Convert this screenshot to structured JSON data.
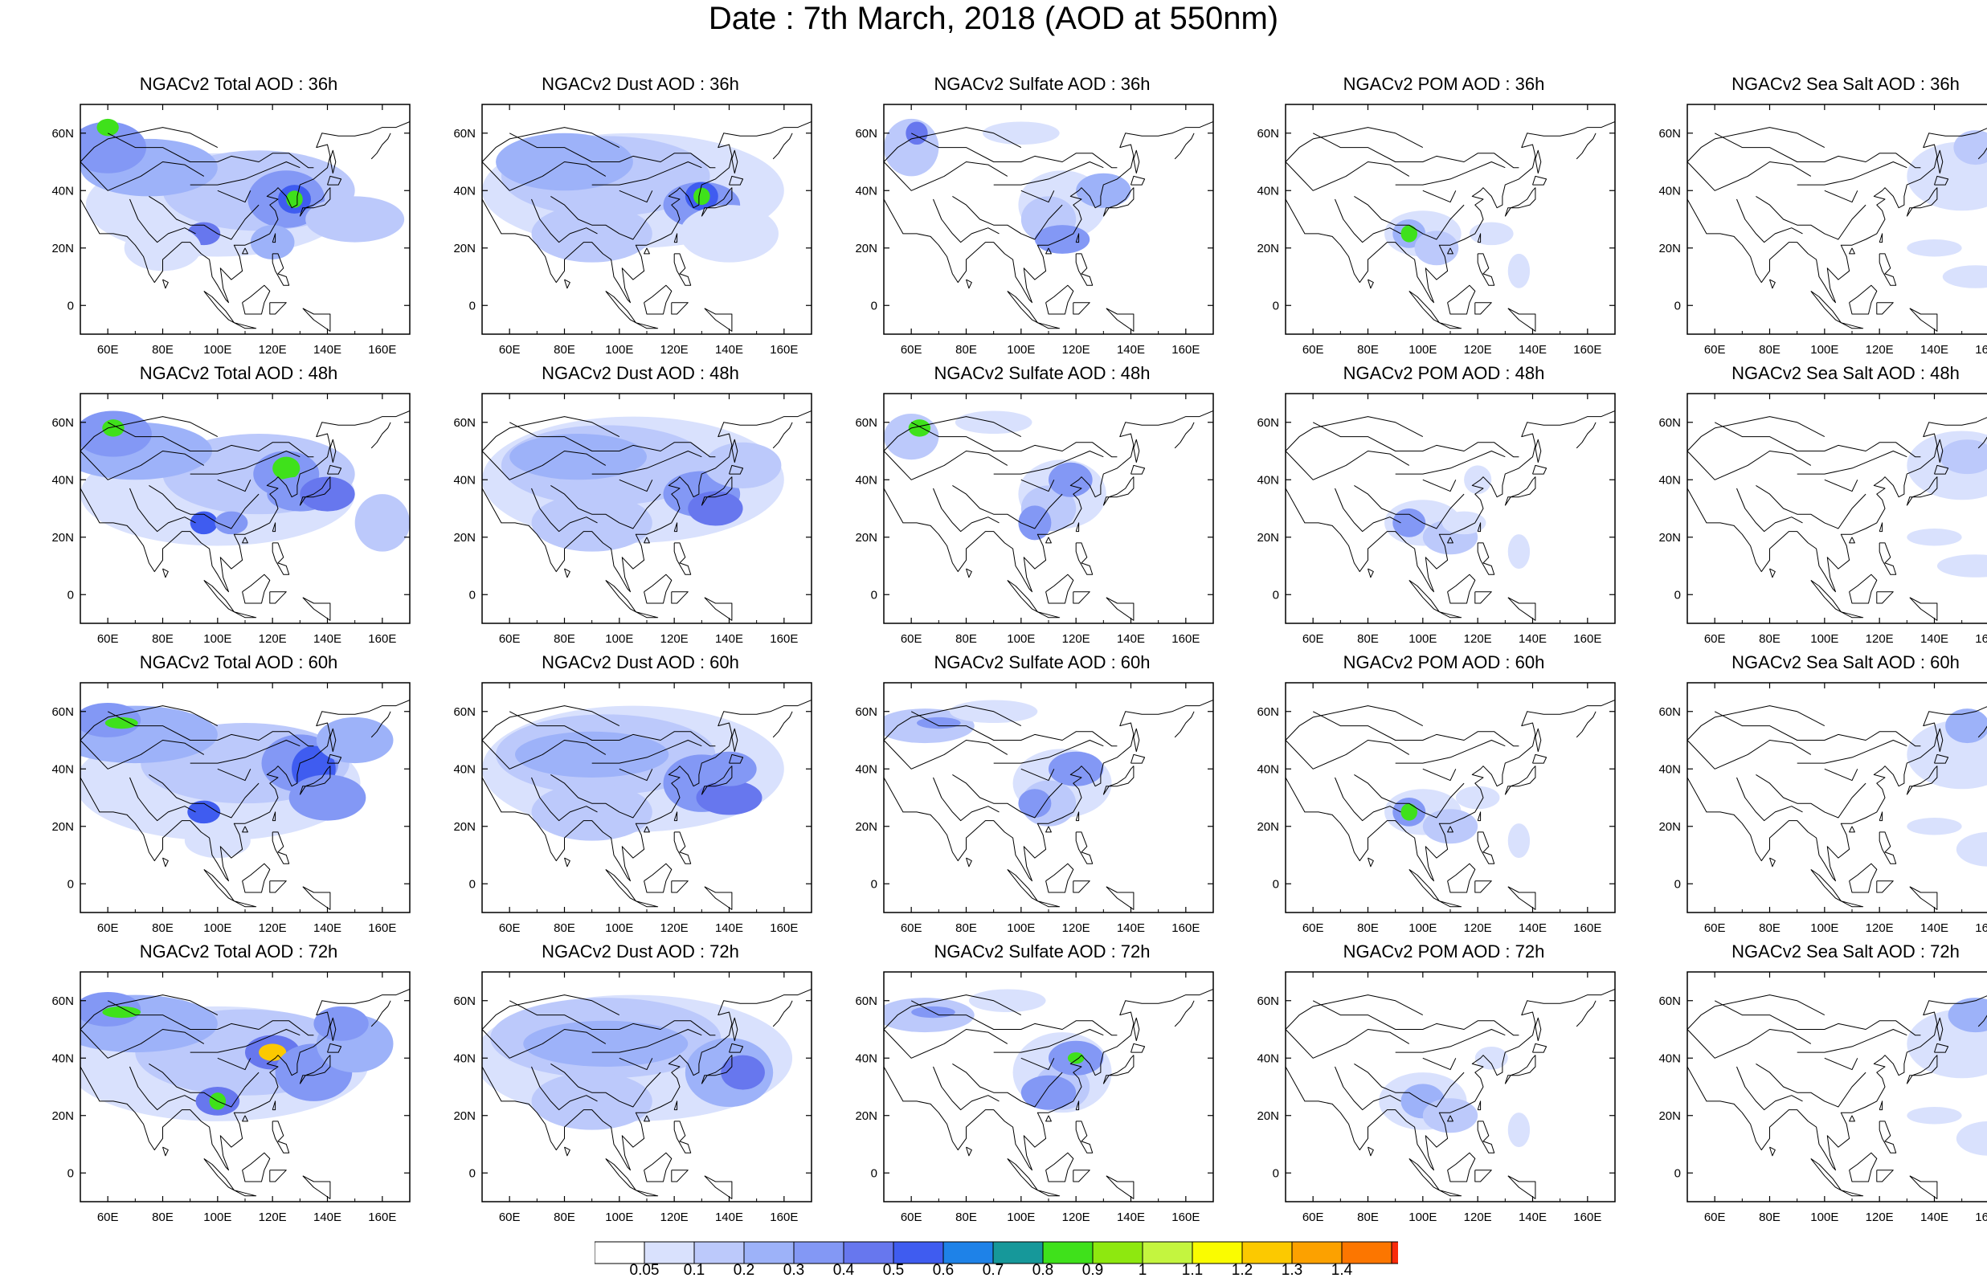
{
  "title": "Date : 7th March, 2018 (AOD at 550nm)",
  "axes": {
    "lon_ticks": [
      "60E",
      "80E",
      "100E",
      "120E",
      "140E",
      "160E"
    ],
    "lat_ticks": [
      "60N",
      "40N",
      "20N",
      "0"
    ],
    "lon_range": [
      50,
      170
    ],
    "lat_range": [
      -10,
      70
    ]
  },
  "panels": [
    {
      "title": "NGACv2 Total AOD : 36h",
      "species": "total",
      "hour": 36
    },
    {
      "title": "NGACv2 Dust AOD : 36h",
      "species": "dust",
      "hour": 36
    },
    {
      "title": "NGACv2 Sulfate AOD : 36h",
      "species": "sulfate",
      "hour": 36
    },
    {
      "title": "NGACv2 POM AOD : 36h",
      "species": "pom",
      "hour": 36
    },
    {
      "title": "NGACv2 Sea Salt AOD : 36h",
      "species": "seasalt",
      "hour": 36
    },
    {
      "title": "NGACv2 Total AOD : 48h",
      "species": "total",
      "hour": 48
    },
    {
      "title": "NGACv2 Dust AOD : 48h",
      "species": "dust",
      "hour": 48
    },
    {
      "title": "NGACv2 Sulfate AOD : 48h",
      "species": "sulfate",
      "hour": 48
    },
    {
      "title": "NGACv2 POM AOD : 48h",
      "species": "pom",
      "hour": 48
    },
    {
      "title": "NGACv2 Sea Salt AOD : 48h",
      "species": "seasalt",
      "hour": 48
    },
    {
      "title": "NGACv2 Total AOD : 60h",
      "species": "total",
      "hour": 60
    },
    {
      "title": "NGACv2 Dust AOD : 60h",
      "species": "dust",
      "hour": 60
    },
    {
      "title": "NGACv2 Sulfate AOD : 60h",
      "species": "sulfate",
      "hour": 60
    },
    {
      "title": "NGACv2 POM AOD : 60h",
      "species": "pom",
      "hour": 60
    },
    {
      "title": "NGACv2 Sea Salt AOD : 60h",
      "species": "seasalt",
      "hour": 60
    },
    {
      "title": "NGACv2 Total AOD : 72h",
      "species": "total",
      "hour": 72
    },
    {
      "title": "NGACv2 Dust AOD : 72h",
      "species": "dust",
      "hour": 72
    },
    {
      "title": "NGACv2 Sulfate AOD : 72h",
      "species": "sulfate",
      "hour": 72
    },
    {
      "title": "NGACv2 POM AOD : 72h",
      "species": "pom",
      "hour": 72
    },
    {
      "title": "NGACv2 Sea Salt  AOD : 72h",
      "species": "seasalt",
      "hour": 72
    }
  ],
  "colorbar": {
    "labels": [
      "0.05",
      "0.1",
      "0.2",
      "0.3",
      "0.4",
      "0.5",
      "0.6",
      "0.7",
      "0.8",
      "0.9",
      "1",
      "1.1",
      "1.2",
      "1.3",
      "1.4"
    ],
    "colors": [
      "#ffffff",
      "#d9e1fd",
      "#bcc9fb",
      "#9db2f9",
      "#8398f5",
      "#6777ee",
      "#3f5cf0",
      "#1e82e8",
      "#16989a",
      "#3fe11b",
      "#8ee80f",
      "#c4f53f",
      "#fafc00",
      "#fcc900",
      "#fca100",
      "#fc7600",
      "#fa2b0a"
    ]
  }
}
